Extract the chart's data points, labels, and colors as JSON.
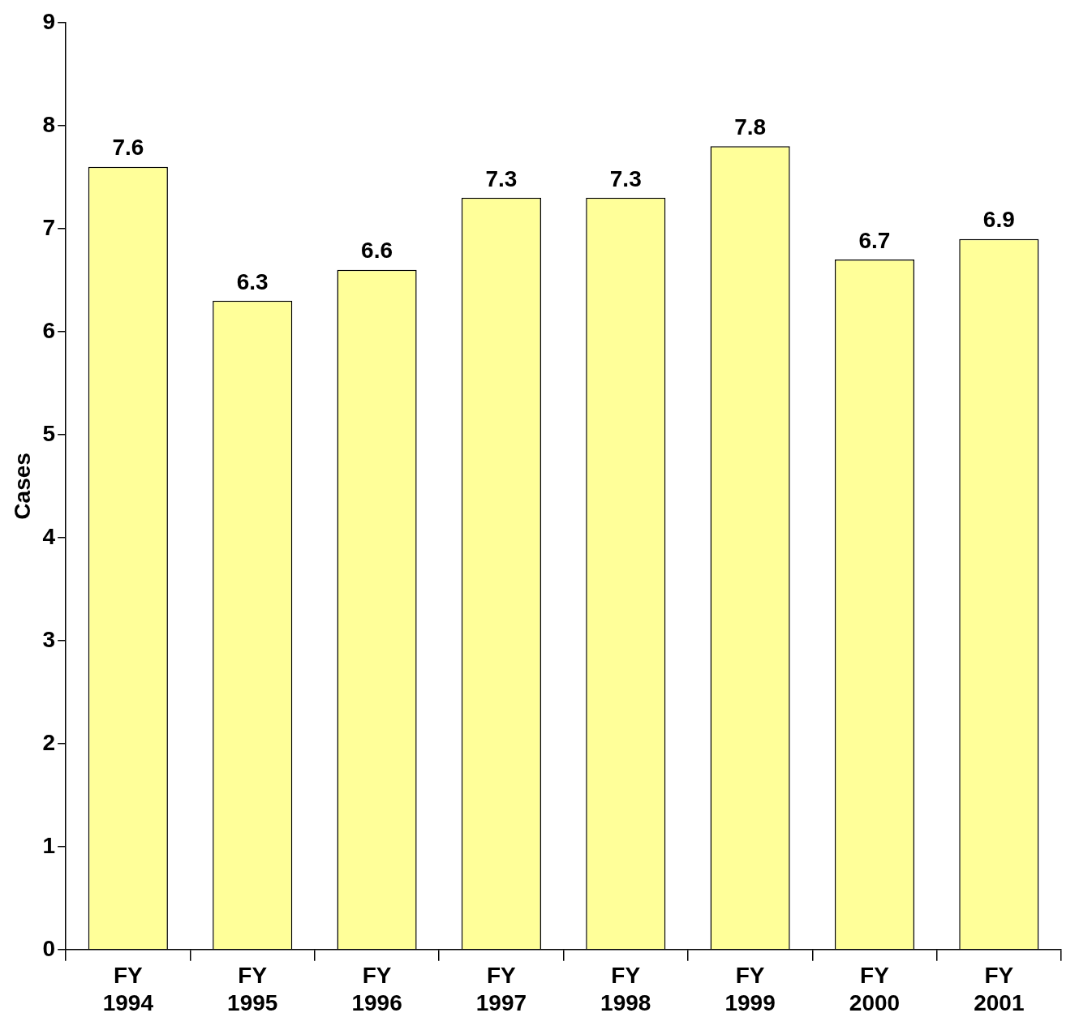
{
  "chart_data": {
    "type": "bar",
    "ylabel": "Cases",
    "categories": [
      "FY 1994",
      "FY 1995",
      "FY 1996",
      "FY 1997",
      "FY 1998",
      "FY 1999",
      "FY 2000",
      "FY 2001"
    ],
    "values": [
      7.6,
      6.3,
      6.6,
      7.3,
      7.3,
      7.8,
      6.7,
      6.9
    ],
    "color": "#ffff99",
    "ylim": [
      0,
      9
    ],
    "yticks": [
      0,
      1,
      2,
      3,
      4,
      5,
      6,
      7,
      8,
      9
    ],
    "grid": false,
    "legend": false,
    "data_labels": true
  }
}
